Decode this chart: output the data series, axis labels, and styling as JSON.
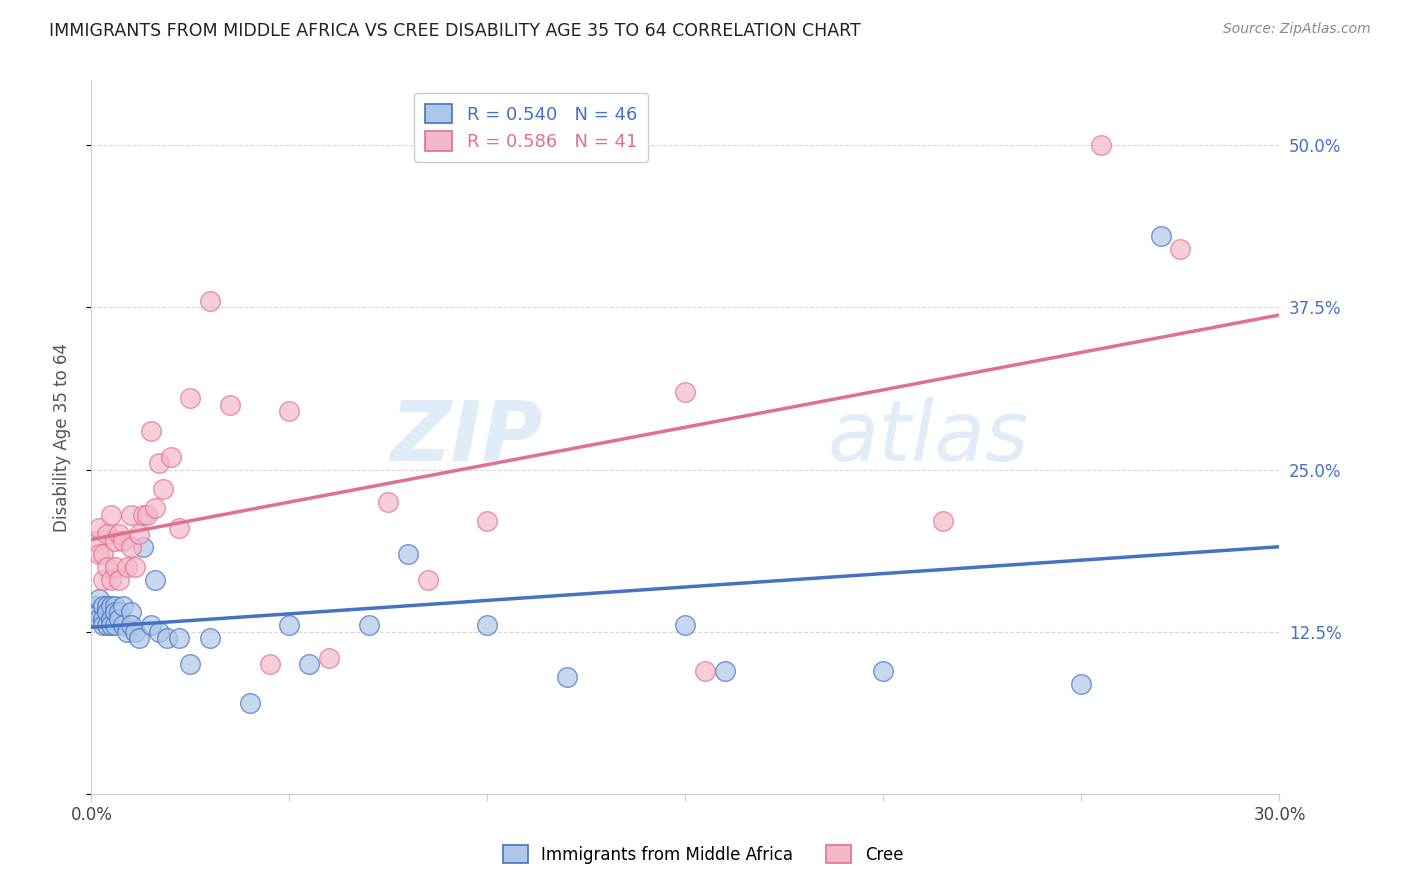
{
  "title": "IMMIGRANTS FROM MIDDLE AFRICA VS CREE DISABILITY AGE 35 TO 64 CORRELATION CHART",
  "source": "Source: ZipAtlas.com",
  "ylabel": "Disability Age 35 to 64",
  "watermark_zip": "ZIP",
  "watermark_atlas": "atlas",
  "xmin": 0.0,
  "xmax": 0.3,
  "ymin": 0.0,
  "ymax": 0.55,
  "yticks": [
    0.0,
    0.125,
    0.25,
    0.375,
    0.5
  ],
  "ytick_labels": [
    "",
    "12.5%",
    "25.0%",
    "37.5%",
    "50.0%"
  ],
  "xticks": [
    0.0,
    0.05,
    0.1,
    0.15,
    0.2,
    0.25,
    0.3
  ],
  "series1_label": "Immigrants from Middle Africa",
  "series1_R": 0.54,
  "series1_N": 46,
  "series1_color": "#aec6e8",
  "series1_line_color": "#4472c4",
  "series2_label": "Cree",
  "series2_R": 0.586,
  "series2_N": 41,
  "series2_color": "#f5b8c8",
  "series2_line_color": "#e07090",
  "blue_x": [
    0.001,
    0.001,
    0.002,
    0.002,
    0.002,
    0.003,
    0.003,
    0.003,
    0.004,
    0.004,
    0.004,
    0.005,
    0.005,
    0.005,
    0.006,
    0.006,
    0.006,
    0.007,
    0.007,
    0.008,
    0.008,
    0.009,
    0.01,
    0.01,
    0.011,
    0.012,
    0.013,
    0.015,
    0.016,
    0.017,
    0.019,
    0.022,
    0.025,
    0.03,
    0.04,
    0.05,
    0.055,
    0.07,
    0.08,
    0.1,
    0.12,
    0.15,
    0.16,
    0.2,
    0.25,
    0.27
  ],
  "blue_y": [
    0.14,
    0.145,
    0.14,
    0.135,
    0.15,
    0.145,
    0.135,
    0.13,
    0.145,
    0.14,
    0.13,
    0.145,
    0.135,
    0.13,
    0.145,
    0.14,
    0.13,
    0.14,
    0.135,
    0.145,
    0.13,
    0.125,
    0.14,
    0.13,
    0.125,
    0.12,
    0.19,
    0.13,
    0.165,
    0.125,
    0.12,
    0.12,
    0.1,
    0.12,
    0.07,
    0.13,
    0.1,
    0.13,
    0.185,
    0.13,
    0.09,
    0.13,
    0.095,
    0.095,
    0.085,
    0.43
  ],
  "pink_x": [
    0.001,
    0.002,
    0.002,
    0.003,
    0.003,
    0.004,
    0.004,
    0.005,
    0.005,
    0.006,
    0.006,
    0.007,
    0.007,
    0.008,
    0.009,
    0.01,
    0.01,
    0.011,
    0.012,
    0.013,
    0.014,
    0.015,
    0.016,
    0.017,
    0.018,
    0.02,
    0.022,
    0.025,
    0.03,
    0.035,
    0.045,
    0.05,
    0.06,
    0.075,
    0.085,
    0.1,
    0.15,
    0.155,
    0.215,
    0.255,
    0.275
  ],
  "pink_y": [
    0.195,
    0.205,
    0.185,
    0.165,
    0.185,
    0.2,
    0.175,
    0.215,
    0.165,
    0.195,
    0.175,
    0.165,
    0.2,
    0.195,
    0.175,
    0.19,
    0.215,
    0.175,
    0.2,
    0.215,
    0.215,
    0.28,
    0.22,
    0.255,
    0.235,
    0.26,
    0.205,
    0.305,
    0.38,
    0.3,
    0.1,
    0.295,
    0.105,
    0.225,
    0.165,
    0.21,
    0.31,
    0.095,
    0.21,
    0.5,
    0.42
  ],
  "title_color": "#222222",
  "source_color": "#888888",
  "axis_color": "#cccccc",
  "grid_color": "#d8d8d8",
  "right_label_color": "#4472c4",
  "background_color": "#ffffff"
}
